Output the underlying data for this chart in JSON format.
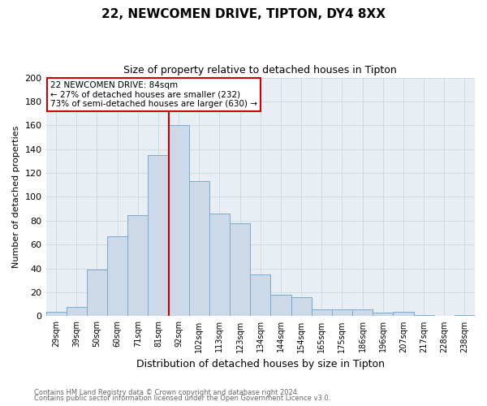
{
  "title": "22, NEWCOMEN DRIVE, TIPTON, DY4 8XX",
  "subtitle": "Size of property relative to detached houses in Tipton",
  "xlabel": "Distribution of detached houses by size in Tipton",
  "ylabel": "Number of detached properties",
  "bar_labels": [
    "29sqm",
    "39sqm",
    "50sqm",
    "60sqm",
    "71sqm",
    "81sqm",
    "92sqm",
    "102sqm",
    "113sqm",
    "123sqm",
    "134sqm",
    "144sqm",
    "154sqm",
    "165sqm",
    "175sqm",
    "186sqm",
    "196sqm",
    "207sqm",
    "217sqm",
    "228sqm",
    "238sqm"
  ],
  "bar_values": [
    4,
    8,
    39,
    67,
    85,
    135,
    160,
    113,
    86,
    78,
    35,
    18,
    16,
    6,
    6,
    6,
    3,
    4,
    1,
    0,
    1
  ],
  "bar_color": "#ccd9e8",
  "bar_edge_color": "#7aaad0",
  "vline_color": "#cc0000",
  "annotation_title": "22 NEWCOMEN DRIVE: 84sqm",
  "annotation_line1": "← 27% of detached houses are smaller (232)",
  "annotation_line2": "73% of semi-detached houses are larger (630) →",
  "annotation_box_color": "#ffffff",
  "annotation_box_edge": "#cc0000",
  "ylim": [
    0,
    200
  ],
  "yticks": [
    0,
    20,
    40,
    60,
    80,
    100,
    120,
    140,
    160,
    180,
    200
  ],
  "grid_color": "#d0dae4",
  "plot_bg_color": "#e8eef4",
  "fig_bg_color": "#ffffff",
  "footer1": "Contains HM Land Registry data © Crown copyright and database right 2024.",
  "footer2": "Contains public sector information licensed under the Open Government Licence v3.0."
}
